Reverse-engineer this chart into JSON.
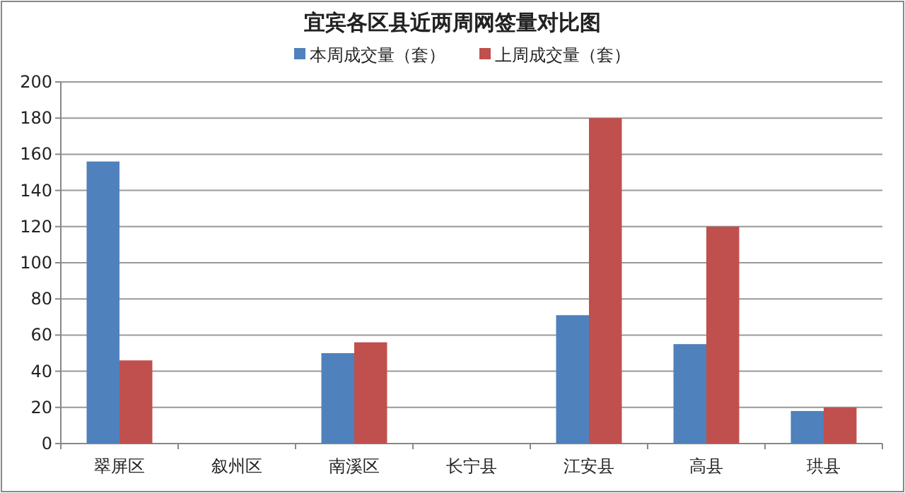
{
  "chart_data": {
    "type": "bar",
    "title": "宜宾各区县近两周网签量对比图",
    "categories": [
      "翠屏区",
      "叙州区",
      "南溪区",
      "长宁县",
      "江安县",
      "高县",
      "珙县"
    ],
    "series": [
      {
        "name": "本周成交量（套）",
        "color": "#4f81bd",
        "values": [
          156,
          0,
          50,
          0,
          71,
          55,
          18
        ]
      },
      {
        "name": "上周成交量（套）",
        "color": "#c0504d",
        "values": [
          46,
          0,
          56,
          0,
          180,
          120,
          20
        ]
      }
    ],
    "ylim": [
      0,
      200
    ],
    "yticks": [
      0,
      20,
      40,
      60,
      80,
      100,
      120,
      140,
      160,
      180,
      200
    ],
    "grid": "y",
    "legend": "top"
  }
}
